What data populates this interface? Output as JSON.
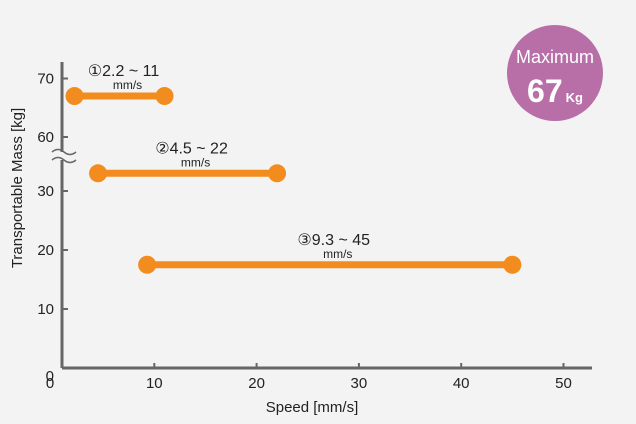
{
  "chart_data": {
    "type": "range-bar",
    "xlabel": "Speed [mm/s]",
    "ylabel": "Transportable Mass [kg]",
    "x_ticks": [
      0,
      10,
      20,
      30,
      40,
      50
    ],
    "y_ticks_lower": [
      0,
      10,
      20,
      30
    ],
    "y_ticks_upper": [
      60,
      70
    ],
    "y_axis_break": [
      35,
      60
    ],
    "x_range": [
      0,
      52
    ],
    "bars": [
      {
        "label": "①2.2 ~ 11",
        "unit": "mm/s",
        "x_start": 2.2,
        "x_end": 11,
        "y": 67
      },
      {
        "label": "②4.5 ~ 22",
        "unit": "mm/s",
        "x_start": 4.5,
        "x_end": 22,
        "y": 33
      },
      {
        "label": "③9.3 ~ 45",
        "unit": "mm/s",
        "x_start": 9.3,
        "x_end": 45,
        "y": 17.5
      }
    ],
    "bar_color": "#f28c1e",
    "axis_color": "#666666"
  },
  "badge": {
    "line1": "Maximum",
    "value": "67",
    "unit": "Kg",
    "color": "#b86fa8"
  }
}
